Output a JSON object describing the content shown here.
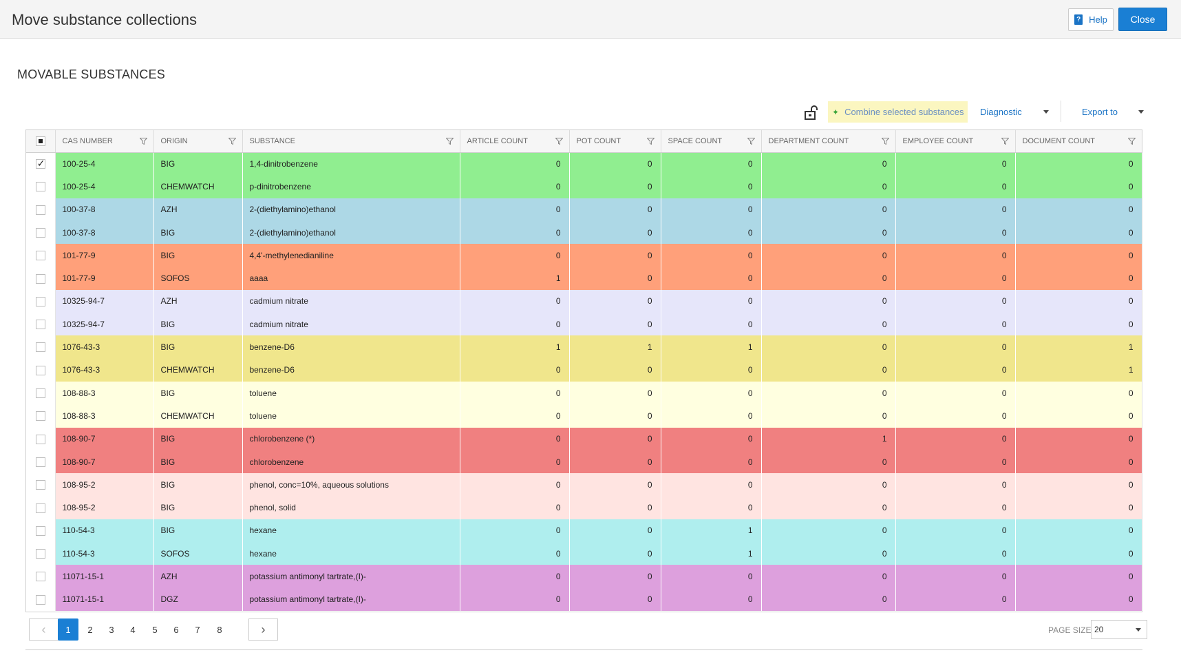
{
  "window": {
    "title": "Move substance collections"
  },
  "header": {
    "help_label": "Help",
    "close_label": "Close"
  },
  "section": {
    "title": "MOVABLE SUBSTANCES"
  },
  "toolbar": {
    "combine_label": "Combine selected substances",
    "diagnostic_label": "Diagnostic",
    "export_label": "Export to"
  },
  "table": {
    "columns": [
      "CAS NUMBER",
      "ORIGIN",
      "SUBSTANCE",
      "ARTICLE COUNT",
      "POT COUNT",
      "SPACE COUNT",
      "DEPARTMENT COUNT",
      "EMPLOYEE COUNT",
      "DOCUMENT COUNT"
    ],
    "rows": [
      {
        "checked": true,
        "color": "#90ee90",
        "cas": "100-25-4",
        "origin": "BIG",
        "substance": "1,4-dinitrobenzene",
        "article": "0",
        "pot": "0",
        "space": "0",
        "department": "0",
        "employee": "0",
        "document": "0"
      },
      {
        "checked": false,
        "color": "#90ee90",
        "cas": "100-25-4",
        "origin": "CHEMWATCH",
        "substance": "p-dinitrobenzene",
        "article": "0",
        "pot": "0",
        "space": "0",
        "department": "0",
        "employee": "0",
        "document": "0"
      },
      {
        "checked": false,
        "color": "#add8e6",
        "cas": "100-37-8",
        "origin": "AZH",
        "substance": "2-(diethylamino)ethanol",
        "article": "0",
        "pot": "0",
        "space": "0",
        "department": "0",
        "employee": "0",
        "document": "0"
      },
      {
        "checked": false,
        "color": "#add8e6",
        "cas": "100-37-8",
        "origin": "BIG",
        "substance": "2-(diethylamino)ethanol",
        "article": "0",
        "pot": "0",
        "space": "0",
        "department": "0",
        "employee": "0",
        "document": "0"
      },
      {
        "checked": false,
        "color": "#ffa07a",
        "cas": "101-77-9",
        "origin": "BIG",
        "substance": "4,4'-methylenedianiline",
        "article": "0",
        "pot": "0",
        "space": "0",
        "department": "0",
        "employee": "0",
        "document": "0"
      },
      {
        "checked": false,
        "color": "#ffa07a",
        "cas": "101-77-9",
        "origin": "SOFOS",
        "substance": "aaaa",
        "article": "1",
        "pot": "0",
        "space": "0",
        "department": "0",
        "employee": "0",
        "document": "0"
      },
      {
        "checked": false,
        "color": "#e6e6fa",
        "cas": "10325-94-7",
        "origin": "AZH",
        "substance": "cadmium nitrate",
        "article": "0",
        "pot": "0",
        "space": "0",
        "department": "0",
        "employee": "0",
        "document": "0"
      },
      {
        "checked": false,
        "color": "#e6e6fa",
        "cas": "10325-94-7",
        "origin": "BIG",
        "substance": "cadmium nitrate",
        "article": "0",
        "pot": "0",
        "space": "0",
        "department": "0",
        "employee": "0",
        "document": "0"
      },
      {
        "checked": false,
        "color": "#f0e68c",
        "cas": "1076-43-3",
        "origin": "BIG",
        "substance": "benzene-D6",
        "article": "1",
        "pot": "1",
        "space": "1",
        "department": "0",
        "employee": "0",
        "document": "1"
      },
      {
        "checked": false,
        "color": "#f0e68c",
        "cas": "1076-43-3",
        "origin": "CHEMWATCH",
        "substance": "benzene-D6",
        "article": "0",
        "pot": "0",
        "space": "0",
        "department": "0",
        "employee": "0",
        "document": "1"
      },
      {
        "checked": false,
        "color": "#ffffe0",
        "cas": "108-88-3",
        "origin": "BIG",
        "substance": "toluene",
        "article": "0",
        "pot": "0",
        "space": "0",
        "department": "0",
        "employee": "0",
        "document": "0"
      },
      {
        "checked": false,
        "color": "#ffffe0",
        "cas": "108-88-3",
        "origin": "CHEMWATCH",
        "substance": "toluene",
        "article": "0",
        "pot": "0",
        "space": "0",
        "department": "0",
        "employee": "0",
        "document": "0"
      },
      {
        "checked": false,
        "color": "#f08080",
        "cas": "108-90-7",
        "origin": "BIG",
        "substance": "chlorobenzene (*)",
        "article": "0",
        "pot": "0",
        "space": "0",
        "department": "1",
        "employee": "0",
        "document": "0"
      },
      {
        "checked": false,
        "color": "#f08080",
        "cas": "108-90-7",
        "origin": "BIG",
        "substance": "chlorobenzene",
        "article": "0",
        "pot": "0",
        "space": "0",
        "department": "0",
        "employee": "0",
        "document": "0"
      },
      {
        "checked": false,
        "color": "#ffe4e1",
        "cas": "108-95-2",
        "origin": "BIG",
        "substance": "phenol, conc=10%, aqueous solutions",
        "article": "0",
        "pot": "0",
        "space": "0",
        "department": "0",
        "employee": "0",
        "document": "0"
      },
      {
        "checked": false,
        "color": "#ffe4e1",
        "cas": "108-95-2",
        "origin": "BIG",
        "substance": "phenol, solid",
        "article": "0",
        "pot": "0",
        "space": "0",
        "department": "0",
        "employee": "0",
        "document": "0"
      },
      {
        "checked": false,
        "color": "#afeeee",
        "cas": "110-54-3",
        "origin": "BIG",
        "substance": "hexane",
        "article": "0",
        "pot": "0",
        "space": "1",
        "department": "0",
        "employee": "0",
        "document": "0"
      },
      {
        "checked": false,
        "color": "#afeeee",
        "cas": "110-54-3",
        "origin": "SOFOS",
        "substance": "hexane",
        "article": "0",
        "pot": "0",
        "space": "1",
        "department": "0",
        "employee": "0",
        "document": "0"
      },
      {
        "checked": false,
        "color": "#dda0dd",
        "cas": "11071-15-1",
        "origin": "AZH",
        "substance": "potassium antimonyl tartrate,(I)-",
        "article": "0",
        "pot": "0",
        "space": "0",
        "department": "0",
        "employee": "0",
        "document": "0"
      },
      {
        "checked": false,
        "color": "#dda0dd",
        "cas": "11071-15-1",
        "origin": "DGZ",
        "substance": "potassium antimonyl tartrate,(I)-",
        "article": "0",
        "pot": "0",
        "space": "0",
        "department": "0",
        "employee": "0",
        "document": "0"
      }
    ]
  },
  "pagination": {
    "pages": [
      "1",
      "2",
      "3",
      "4",
      "5",
      "6",
      "7",
      "8"
    ],
    "active_page": "1",
    "page_size_label": "PAGE SIZE",
    "page_size_value": "20"
  }
}
